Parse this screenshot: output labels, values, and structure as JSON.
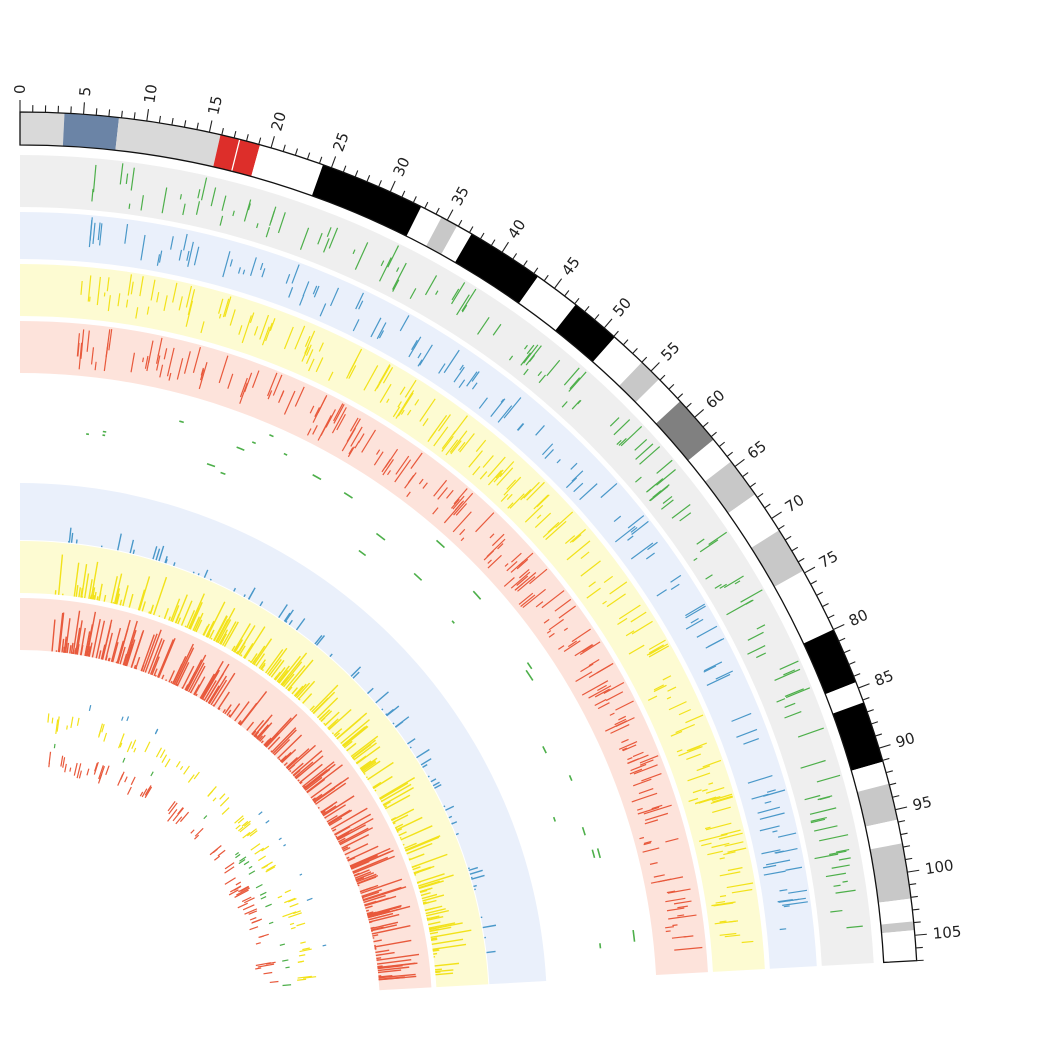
{
  "chart_data": {
    "type": "circos",
    "axis": {
      "unit": "Mb",
      "min": 0,
      "max": 107,
      "major_tick_step": 5,
      "minor_tick_step": 1,
      "tick_labels": [
        "0",
        "5",
        "10",
        "15",
        "20",
        "25",
        "30",
        "35",
        "40",
        "45",
        "50",
        "55",
        "60",
        "65",
        "70",
        "75",
        "80",
        "85",
        "90",
        "95",
        "100",
        "105"
      ]
    },
    "ideogram_bands": [
      {
        "start": 0,
        "end": 3.5,
        "color": "#d9d9d9"
      },
      {
        "start": 3.5,
        "end": 7.8,
        "color": "#6b84a6"
      },
      {
        "start": 7.8,
        "end": 15.9,
        "color": "#d9d9d9"
      },
      {
        "start": 15.9,
        "end": 17.4,
        "color": "#dd2e2a"
      },
      {
        "start": 17.5,
        "end": 19.1,
        "color": "#dd2e2a"
      },
      {
        "start": 19.1,
        "end": 24.3,
        "color": "#ffffff"
      },
      {
        "start": 24.3,
        "end": 32.7,
        "color": "#000000"
      },
      {
        "start": 32.7,
        "end": 34.5,
        "color": "#ffffff"
      },
      {
        "start": 34.5,
        "end": 35.9,
        "color": "#c8c8c8"
      },
      {
        "start": 35.9,
        "end": 37.2,
        "color": "#ffffff"
      },
      {
        "start": 37.2,
        "end": 43.4,
        "color": "#000000"
      },
      {
        "start": 43.4,
        "end": 47.1,
        "color": "#ffffff"
      },
      {
        "start": 47.1,
        "end": 51.1,
        "color": "#000000"
      },
      {
        "start": 51.1,
        "end": 54.0,
        "color": "#ffffff"
      },
      {
        "start": 54.0,
        "end": 55.9,
        "color": "#c8c8c8"
      },
      {
        "start": 55.9,
        "end": 58.3,
        "color": "#ffffff"
      },
      {
        "start": 58.3,
        "end": 62.3,
        "color": "#808080"
      },
      {
        "start": 62.3,
        "end": 64.5,
        "color": "#ffffff"
      },
      {
        "start": 64.5,
        "end": 67.7,
        "color": "#c8c8c8"
      },
      {
        "start": 67.7,
        "end": 71.1,
        "color": "#ffffff"
      },
      {
        "start": 71.1,
        "end": 74.8,
        "color": "#c8c8c8"
      },
      {
        "start": 74.8,
        "end": 80.0,
        "color": "#ffffff"
      },
      {
        "start": 80.0,
        "end": 84.5,
        "color": "#000000"
      },
      {
        "start": 84.5,
        "end": 86.2,
        "color": "#ffffff"
      },
      {
        "start": 86.2,
        "end": 91.1,
        "color": "#000000"
      },
      {
        "start": 91.1,
        "end": 92.9,
        "color": "#ffffff"
      },
      {
        "start": 92.9,
        "end": 95.8,
        "color": "#c8c8c8"
      },
      {
        "start": 95.8,
        "end": 97.7,
        "color": "#ffffff"
      },
      {
        "start": 97.7,
        "end": 102.1,
        "color": "#c8c8c8"
      },
      {
        "start": 102.1,
        "end": 103.9,
        "color": "#ffffff"
      },
      {
        "start": 103.9,
        "end": 104.6,
        "color": "#c8c8c8"
      },
      {
        "start": 104.6,
        "end": 107.0,
        "color": "#ffffff"
      }
    ],
    "tracks": [
      {
        "group": "outer",
        "kind": "segments",
        "color": "#4daf4a",
        "background": "#efefef"
      },
      {
        "group": "outer",
        "kind": "segments",
        "color": "#4a98c9",
        "background": "#eaf0fb"
      },
      {
        "group": "outer",
        "kind": "segments",
        "color": "#f2e21a",
        "background": "#fdfbd2"
      },
      {
        "group": "outer",
        "kind": "segments",
        "color": "#e8593c",
        "background": "#fde3db"
      },
      {
        "group": "middle",
        "kind": "sparse_segments",
        "color": "#4daf4a",
        "background": "#ffffff"
      },
      {
        "group": "middle",
        "kind": "sparse_segments",
        "color": "#e8593c",
        "background": "#ffffff"
      },
      {
        "group": "middle",
        "kind": "histogram",
        "color": "#4a98c9",
        "background": "#eaf0fb"
      },
      {
        "group": "middle",
        "kind": "histogram",
        "color": "#f2e21a",
        "background": "#fdfbd2"
      },
      {
        "group": "middle",
        "kind": "histogram",
        "color": "#e8593c",
        "background": "#fde3db"
      },
      {
        "group": "inner",
        "kind": "segments",
        "color": "#4a98c9",
        "background": "#ffffff"
      },
      {
        "group": "inner",
        "kind": "segments",
        "color": "#f2e21a",
        "background": "#ffffff"
      },
      {
        "group": "inner",
        "kind": "segments",
        "color": "#4daf4a",
        "background": "#ffffff"
      },
      {
        "group": "inner",
        "kind": "segments",
        "color": "#e8593c",
        "background": "#ffffff"
      }
    ]
  }
}
